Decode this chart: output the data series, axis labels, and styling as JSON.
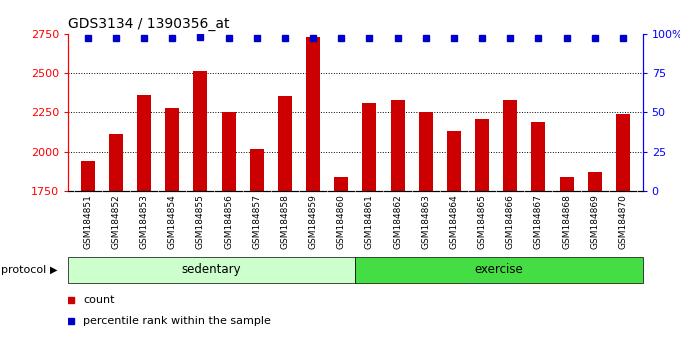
{
  "title": "GDS3134 / 1390356_at",
  "samples": [
    "GSM184851",
    "GSM184852",
    "GSM184853",
    "GSM184854",
    "GSM184855",
    "GSM184856",
    "GSM184857",
    "GSM184858",
    "GSM184859",
    "GSM184860",
    "GSM184861",
    "GSM184862",
    "GSM184863",
    "GSM184864",
    "GSM184865",
    "GSM184866",
    "GSM184867",
    "GSM184868",
    "GSM184869",
    "GSM184870"
  ],
  "counts": [
    1940,
    2110,
    2360,
    2280,
    2510,
    2250,
    2020,
    2355,
    2730,
    1840,
    2310,
    2330,
    2250,
    2130,
    2210,
    2330,
    2190,
    1840,
    1870,
    2240
  ],
  "percentile_pct": [
    97,
    97,
    97,
    97,
    98,
    97,
    97,
    97,
    97,
    97,
    97,
    97,
    97,
    97,
    97,
    97,
    97,
    97,
    97,
    97
  ],
  "groups": {
    "sedentary": [
      0,
      9
    ],
    "exercise": [
      10,
      19
    ]
  },
  "sedentary_color": "#ccffcc",
  "exercise_color": "#44dd44",
  "bar_color": "#cc0000",
  "dot_color": "#0000cc",
  "ylim": [
    1750,
    2750
  ],
  "yticks": [
    1750,
    2000,
    2250,
    2500,
    2750
  ],
  "right_yticks": [
    0,
    25,
    50,
    75,
    100
  ],
  "right_ylabels": [
    "0",
    "25",
    "50",
    "75",
    "100%"
  ],
  "grid_lines": [
    2000,
    2250,
    2500
  ],
  "plot_bg": "#ffffff",
  "tick_area_bg": "#d0d0d0",
  "legend_count_label": "count",
  "legend_pct_label": "percentile rank within the sample"
}
